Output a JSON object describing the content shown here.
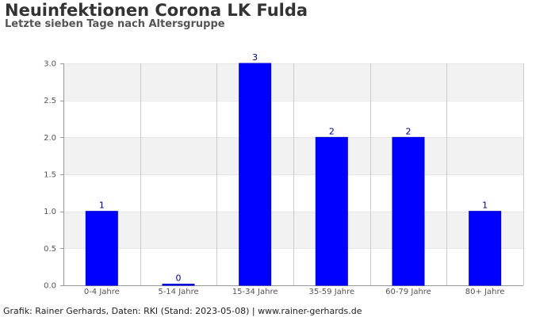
{
  "header": {
    "title": "Neuinfektionen Corona LK Fulda",
    "subtitle": "Letzte sieben Tage nach Altersgruppe"
  },
  "footer": {
    "credit": "Grafik: Rainer Gerhards, Daten: RKI (Stand: 2023-05-08) | www.rainer-gerhards.de"
  },
  "colors": {
    "bar": "#0000ff",
    "bar_edge": "#0000cc",
    "label": "#000080",
    "band_shaded": "#f2f2f2",
    "grid": "#cccccc"
  },
  "chart_data": {
    "type": "bar",
    "categories": [
      "0-4 Jahre",
      "5-14 Jahre",
      "15-34 Jahre",
      "35-59 Jahre",
      "60-79 Jahre",
      "80+ Jahre"
    ],
    "values": [
      1,
      0,
      3,
      2,
      2,
      1
    ],
    "data_labels": [
      "1",
      "0",
      "3",
      "2",
      "2",
      "1"
    ],
    "ylim": [
      0,
      3
    ],
    "yticks": [
      0.0,
      0.5,
      1.0,
      1.5,
      2.0,
      2.5,
      3.0
    ],
    "ytick_labels": [
      "0.0",
      "0.5",
      "1.0",
      "1.5",
      "2.0",
      "2.5",
      "3.0"
    ],
    "title": "Neuinfektionen Corona LK Fulda",
    "subtitle": "Letzte sieben Tage nach Altersgruppe",
    "xlabel": "",
    "ylabel": "",
    "grid": true,
    "legend": "none"
  }
}
